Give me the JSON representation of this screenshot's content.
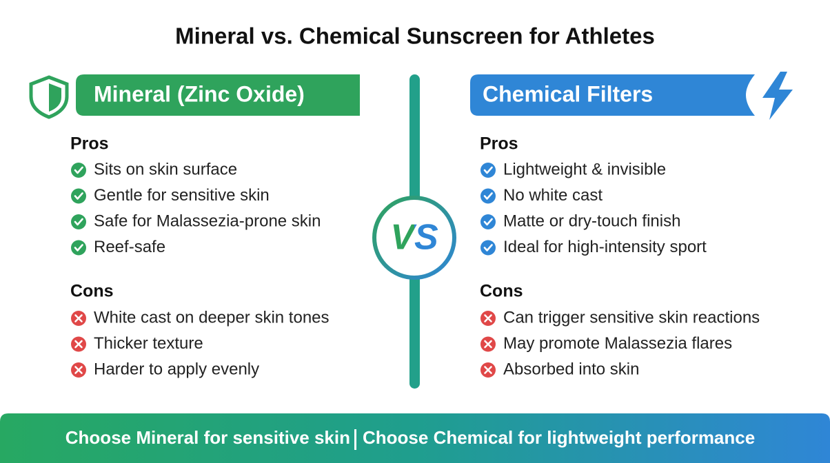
{
  "title": "Mineral vs. Chemical Sunscreen for Athletes",
  "vs": "VS",
  "panels": [
    {
      "heading": "Mineral (Zinc Oxide)",
      "pros_title": "Pros",
      "pros": [
        "Sits on skin surface",
        "Gentle for sensitive skin",
        "Safe for Malassezia-prone skin",
        "Reef-safe"
      ],
      "cons_title": "Cons",
      "cons": [
        "White cast on deeper skin tones",
        "Thicker texture",
        "Harder to apply evenly"
      ]
    },
    {
      "heading": "Chemical Filters",
      "pros_title": "Pros",
      "pros": [
        "Lightweight & invisible",
        "No white cast",
        "Matte or dry-touch finish",
        "Ideal for high-intensity sport"
      ],
      "cons_title": "Cons",
      "cons": [
        "Can trigger sensitive skin reactions",
        "May promote Malassezia flares",
        "Absorbed into skin"
      ]
    }
  ],
  "footer": {
    "left": "Choose Mineral for sensitive skin",
    "right": "Choose Chemical for lightweight performance"
  }
}
